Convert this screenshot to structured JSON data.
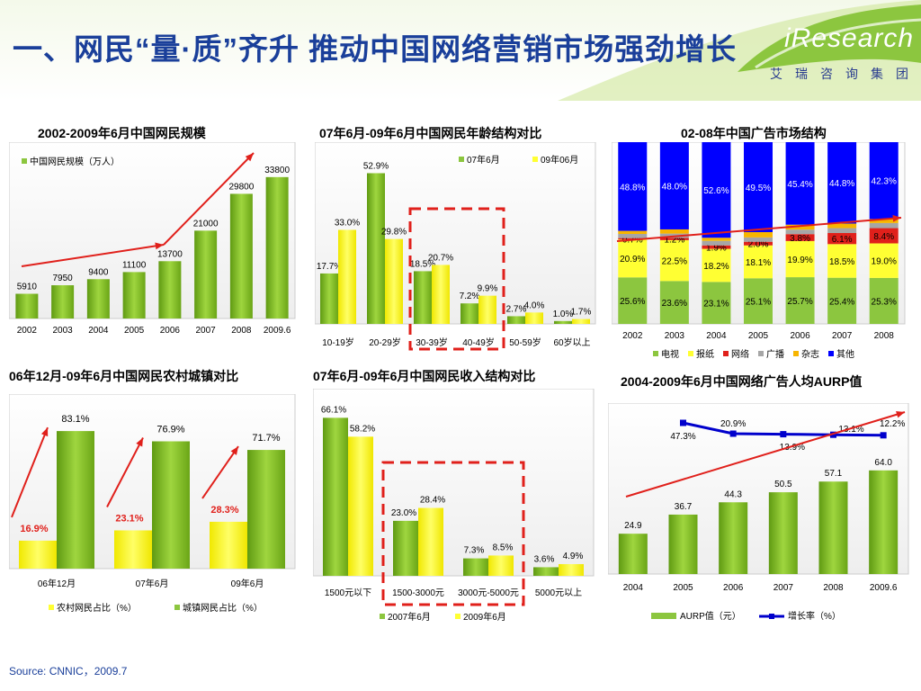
{
  "header": {
    "title": "一、网民“量·质”齐升  推动中国网络营销市场强劲增长",
    "logo": "iResearch",
    "logo_sub": "艾瑞咨询集团"
  },
  "source": "Source: CNNIC，2009.7",
  "colors": {
    "green": "#8cc63f",
    "yellow": "#ffff33",
    "blue": "#0000ff",
    "red": "#e0201b",
    "grey": "#a6a6a6",
    "orange": "#f7b500"
  },
  "chart_data": [
    {
      "id": "netizen-scale",
      "type": "bar",
      "title": "2002-2009年6月中国网民规模",
      "categories": [
        "2002",
        "2003",
        "2004",
        "2005",
        "2006",
        "2007",
        "2008",
        "2009.6"
      ],
      "series": [
        {
          "name": "中国网民规模（万人）",
          "values": [
            5910,
            7950,
            9400,
            11100,
            13700,
            21000,
            29800,
            33800
          ]
        }
      ],
      "ylim": [
        0,
        40000
      ],
      "legend": "top-left"
    },
    {
      "id": "age-structure",
      "type": "bar",
      "title": "07年6月-09年6月中国网民年龄结构对比",
      "categories": [
        "10-19岁",
        "20-29岁",
        "30-39岁",
        "40-49岁",
        "50-59岁",
        "60岁以上"
      ],
      "series": [
        {
          "name": "07年6月",
          "values": [
            17.7,
            52.9,
            18.5,
            7.2,
            2.7,
            1.0
          ]
        },
        {
          "name": "09年06月",
          "values": [
            33.0,
            29.8,
            20.7,
            9.9,
            4.0,
            1.7
          ]
        }
      ],
      "ylim": [
        0,
        60
      ],
      "legend": "top-right"
    },
    {
      "id": "ad-market-structure",
      "type": "bar",
      "stacked": true,
      "title": "02-08年中国广告市场结构",
      "categories": [
        "2002",
        "2003",
        "2004",
        "2005",
        "2006",
        "2007",
        "2008"
      ],
      "series": [
        {
          "name": "电视",
          "values": [
            25.6,
            23.6,
            23.1,
            25.1,
            25.7,
            25.4,
            25.3
          ]
        },
        {
          "name": "报纸",
          "values": [
            20.9,
            22.5,
            18.2,
            18.1,
            19.9,
            18.5,
            19.0
          ]
        },
        {
          "name": "网络",
          "values": [
            0.7,
            1.2,
            1.9,
            2.0,
            3.8,
            6.1,
            8.4
          ]
        },
        {
          "name": "广播",
          "values": [
            2.3,
            2.4,
            2.5,
            2.4,
            2.5,
            2.7,
            2.8
          ]
        },
        {
          "name": "杂志",
          "values": [
            1.7,
            2.3,
            1.7,
            2.9,
            2.7,
            2.5,
            2.2
          ]
        },
        {
          "name": "其他",
          "values": [
            48.8,
            48.0,
            52.6,
            49.5,
            45.4,
            44.8,
            42.3
          ]
        }
      ],
      "legend": "bottom"
    },
    {
      "id": "rural-urban",
      "type": "bar",
      "title": "06年12月-09年6月中国网民农村城镇对比",
      "categories": [
        "06年12月",
        "07年6月",
        "09年6月"
      ],
      "series": [
        {
          "name": "农村网民占比（%）",
          "values": [
            16.9,
            23.1,
            28.3
          ]
        },
        {
          "name": "城镇网民占比（%）",
          "values": [
            83.1,
            76.9,
            71.7
          ]
        }
      ],
      "ylim": [
        0,
        100
      ],
      "legend": "bottom"
    },
    {
      "id": "income-structure",
      "type": "bar",
      "title": "07年6月-09年6月中国网民收入结构对比",
      "categories": [
        "1500元以下",
        "1500-3000元",
        "3000元-5000元",
        "5000元以上"
      ],
      "series": [
        {
          "name": "2007年6月",
          "values": [
            66.1,
            23.0,
            7.3,
            3.6
          ]
        },
        {
          "name": "2009年6月",
          "values": [
            58.2,
            28.4,
            8.5,
            4.9
          ]
        }
      ],
      "ylim": [
        0,
        70
      ],
      "legend": "bottom"
    },
    {
      "id": "aurp",
      "type": "bar",
      "title": "2004-2009年6月中国网络广告人均AURP值",
      "categories": [
        "2004",
        "2005",
        "2006",
        "2007",
        "2008",
        "2009.6"
      ],
      "series": [
        {
          "name": "AURP值（元）",
          "values": [
            24.9,
            36.7,
            44.3,
            50.5,
            57.1,
            64.0
          ]
        },
        {
          "name": "增长率（%）",
          "type": "line",
          "values": [
            null,
            47.3,
            20.9,
            13.9,
            13.1,
            12.2
          ]
        }
      ],
      "ylim": [
        0,
        100
      ],
      "legend": "bottom"
    }
  ]
}
